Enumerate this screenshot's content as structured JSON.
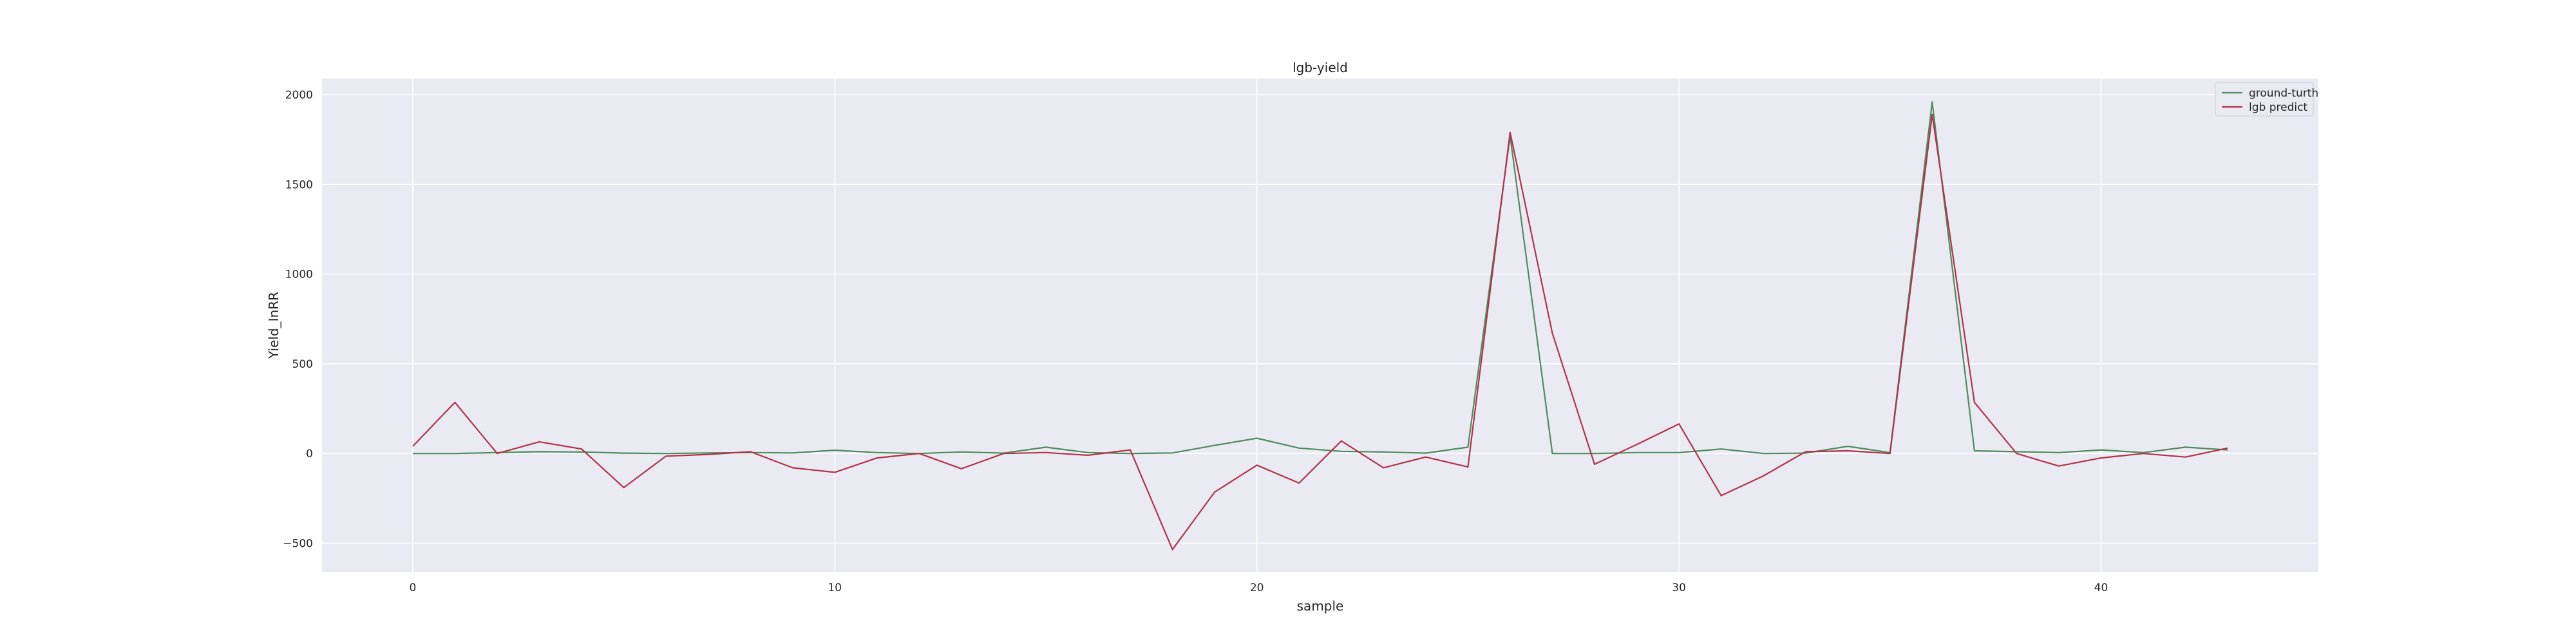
{
  "chart_data": {
    "type": "line",
    "title": "lgb-yield",
    "xlabel": "sample",
    "ylabel": "Yield_InRR",
    "xlim": [
      -2.15,
      45.15
    ],
    "ylim": [
      -660,
      2090
    ],
    "xticks": [
      0,
      10,
      20,
      30,
      40
    ],
    "yticks": [
      -500,
      0,
      500,
      1000,
      1500,
      2000
    ],
    "grid": true,
    "legend_position": "top-right",
    "background": "#eaeaf2",
    "x": [
      0,
      1,
      2,
      3,
      4,
      5,
      6,
      7,
      8,
      9,
      10,
      11,
      12,
      13,
      14,
      15,
      16,
      17,
      18,
      19,
      20,
      21,
      22,
      23,
      24,
      25,
      26,
      27,
      28,
      29,
      30,
      31,
      32,
      33,
      34,
      35,
      36,
      37,
      38,
      39,
      40,
      41,
      42,
      43
    ],
    "series": [
      {
        "name": "ground-turth",
        "color": "#4c8c5e",
        "values": [
          0,
          0,
          5,
          10,
          8,
          2,
          0,
          3,
          5,
          3,
          18,
          5,
          0,
          8,
          2,
          35,
          5,
          0,
          3,
          45,
          85,
          30,
          12,
          8,
          2,
          35,
          1770,
          0,
          0,
          5,
          5,
          25,
          0,
          2,
          40,
          5,
          1960,
          15,
          10,
          5,
          20,
          5,
          35,
          20
        ]
      },
      {
        "name": "lgb predict",
        "color": "#b2324a",
        "values": [
          40,
          285,
          0,
          65,
          25,
          -190,
          -15,
          -5,
          10,
          -80,
          -105,
          -25,
          0,
          -85,
          0,
          5,
          -10,
          20,
          -535,
          -215,
          -65,
          -165,
          70,
          -80,
          -20,
          -75,
          1790,
          670,
          -60,
          50,
          165,
          -235,
          -125,
          10,
          15,
          0,
          1890,
          285,
          0,
          -70,
          -25,
          0,
          -20,
          30
        ]
      }
    ]
  }
}
